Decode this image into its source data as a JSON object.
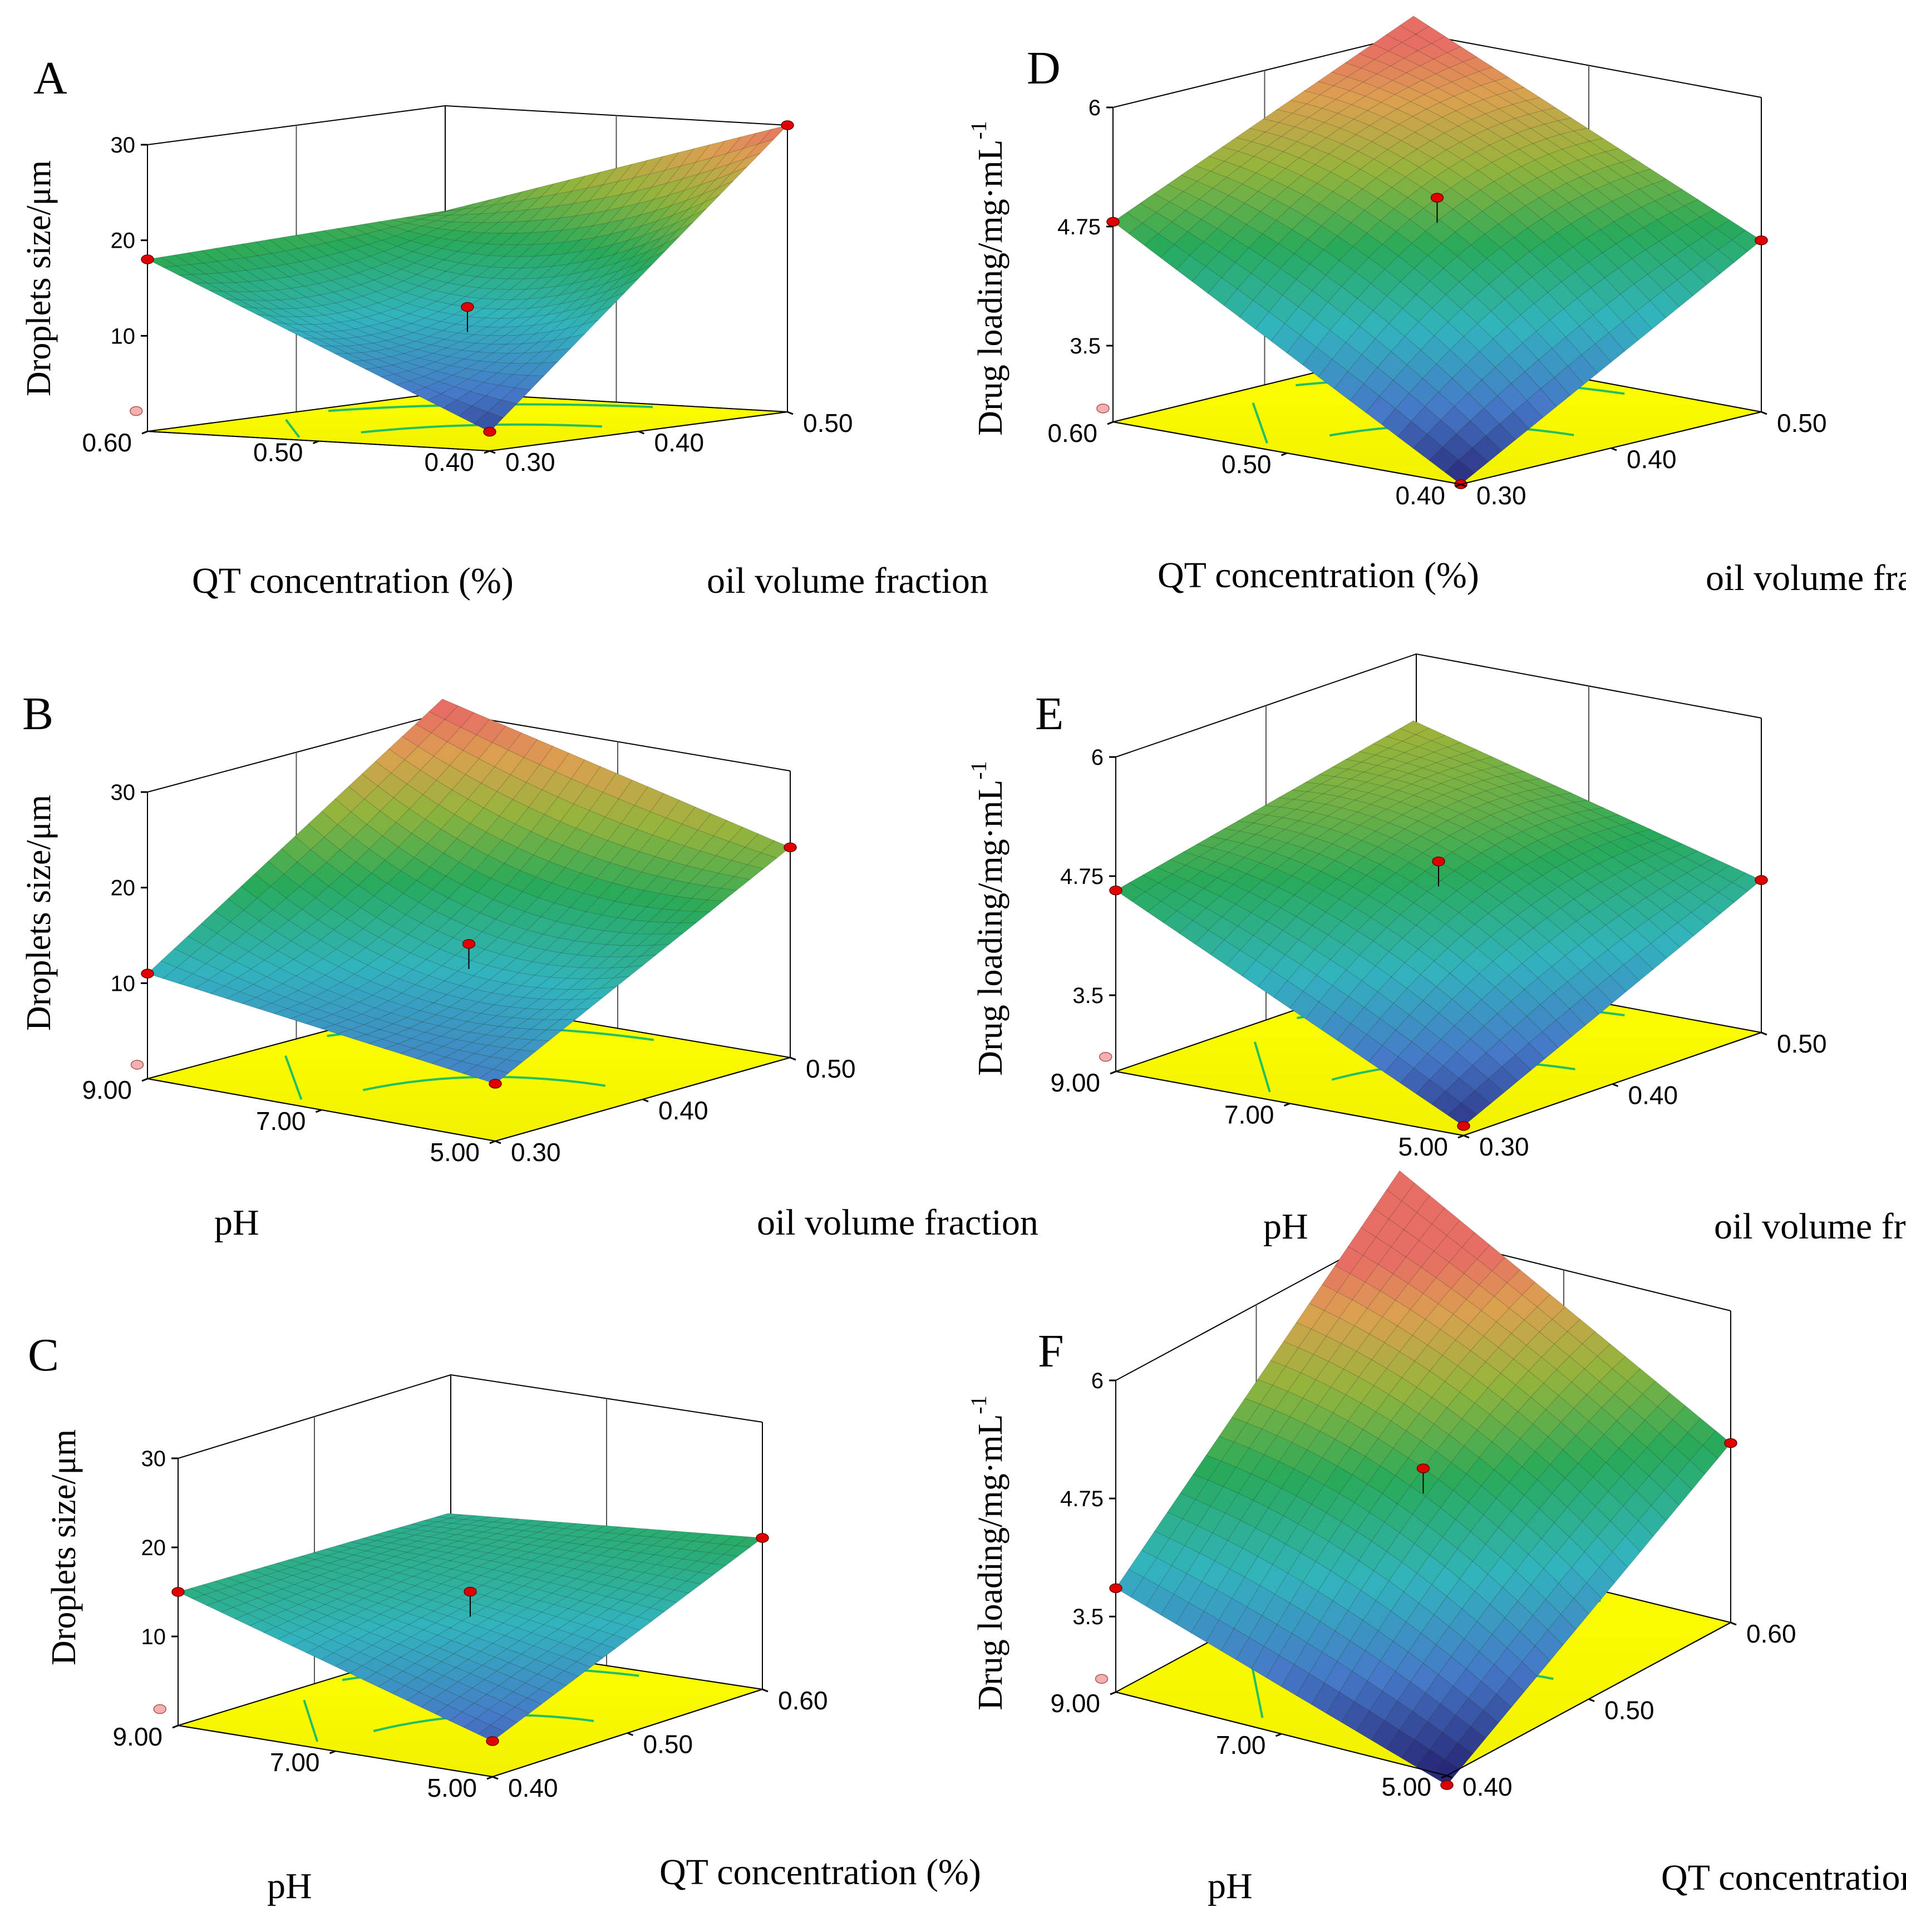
{
  "figure": {
    "colors": {
      "floor": "#ffff00",
      "contour": "#22c060",
      "design_point": "#e00000",
      "design_point_below": "#f4b0b0"
    },
    "panels_text": "six response-surface plots"
  },
  "chart_data": [
    {
      "id": "A",
      "type": "surface3d",
      "xlabel": "QT concentration (%)",
      "ylabel": "oil volume fraction",
      "zlabel": "Droplets size/μm",
      "xticks": [
        "0.40",
        "0.50",
        "0.60"
      ],
      "yticks": [
        "0.30",
        "0.40",
        "0.50"
      ],
      "zticks": [
        "10",
        "20",
        "30"
      ],
      "xrange": [
        0.4,
        0.6
      ],
      "yrange": [
        0.3,
        0.5
      ],
      "zrange": [
        0,
        30
      ],
      "corners": {
        "x_high_y_low": 18,
        "x_low_y_low": 2,
        "x_high_y_high": 19,
        "x_low_y_high": 30
      },
      "center": 12
    },
    {
      "id": "B",
      "type": "surface3d",
      "xlabel": "pH",
      "ylabel": "oil volume fraction",
      "zlabel": "Droplets size/μm",
      "xticks": [
        "5.00",
        "7.00",
        "9.00"
      ],
      "yticks": [
        "0.30",
        "0.40",
        "0.50"
      ],
      "zticks": [
        "10",
        "20",
        "30"
      ],
      "xrange": [
        5,
        9
      ],
      "yrange": [
        0.3,
        0.5
      ],
      "zrange": [
        0,
        30
      ],
      "corners": {
        "x_high_y_low": 11,
        "x_low_y_low": 6,
        "x_high_y_high": 31,
        "x_low_y_high": 22
      },
      "center": 13
    },
    {
      "id": "C",
      "type": "surface3d",
      "xlabel": "pH",
      "ylabel": "QT concentration (%)",
      "zlabel": "Droplets size/μm",
      "xticks": [
        "5.00",
        "7.00",
        "9.00"
      ],
      "yticks": [
        "0.40",
        "0.50",
        "0.60"
      ],
      "zticks": [
        "10",
        "20",
        "30"
      ],
      "xrange": [
        5,
        9
      ],
      "yrange": [
        0.4,
        0.6
      ],
      "zrange": [
        0,
        30
      ],
      "corners": {
        "x_high_y_low": 15,
        "x_low_y_low": 4,
        "x_high_y_high": 14,
        "x_low_y_high": 17
      },
      "center": 13
    },
    {
      "id": "D",
      "type": "surface3d",
      "xlabel": "QT concentration (%)",
      "ylabel": "oil volume fraction",
      "zlabel": "Drug loading/mg·mL",
      "zlabel_sup": "-1",
      "xticks": [
        "0.40",
        "0.50",
        "0.60"
      ],
      "yticks": [
        "0.30",
        "0.40",
        "0.50"
      ],
      "zticks": [
        "3.5",
        "4.75",
        "6"
      ],
      "xrange": [
        0.4,
        0.6
      ],
      "yrange": [
        0.3,
        0.5
      ],
      "zrange": [
        2.7,
        6
      ],
      "corners": {
        "x_high_y_low": 4.8,
        "x_low_y_low": 2.7,
        "x_high_y_high": 6.2,
        "x_low_y_high": 4.5
      },
      "center": 5.0
    },
    {
      "id": "E",
      "type": "surface3d",
      "xlabel": "pH",
      "ylabel": "oil volume fraction",
      "zlabel": "Drug loading/mg·mL",
      "zlabel_sup": "-1",
      "xticks": [
        "5.00",
        "7.00",
        "9.00"
      ],
      "yticks": [
        "0.30",
        "0.40",
        "0.50"
      ],
      "zticks": [
        "3.5",
        "4.75",
        "6"
      ],
      "xrange": [
        5,
        9
      ],
      "yrange": [
        0.3,
        0.5
      ],
      "zrange": [
        2.7,
        6
      ],
      "corners": {
        "x_high_y_low": 4.6,
        "x_low_y_low": 2.8,
        "x_high_y_high": 5.3,
        "x_low_y_high": 4.3
      },
      "center": 4.7
    },
    {
      "id": "F",
      "type": "surface3d",
      "xlabel": "pH",
      "ylabel": "QT concentration (%)",
      "zlabel": "Drug loading/mg·mL",
      "zlabel_sup": "-1",
      "xticks": [
        "5.00",
        "7.00",
        "9.00"
      ],
      "yticks": [
        "0.40",
        "0.50",
        "0.60"
      ],
      "zticks": [
        "3.5",
        "4.75",
        "6"
      ],
      "xrange": [
        5,
        9
      ],
      "yrange": [
        0.4,
        0.6
      ],
      "zrange": [
        2.7,
        6
      ],
      "corners": {
        "x_high_y_low": 3.8,
        "x_low_y_low": 2.6,
        "x_high_y_high": 6.6,
        "x_low_y_high": 4.6
      },
      "center": 4.7
    }
  ]
}
